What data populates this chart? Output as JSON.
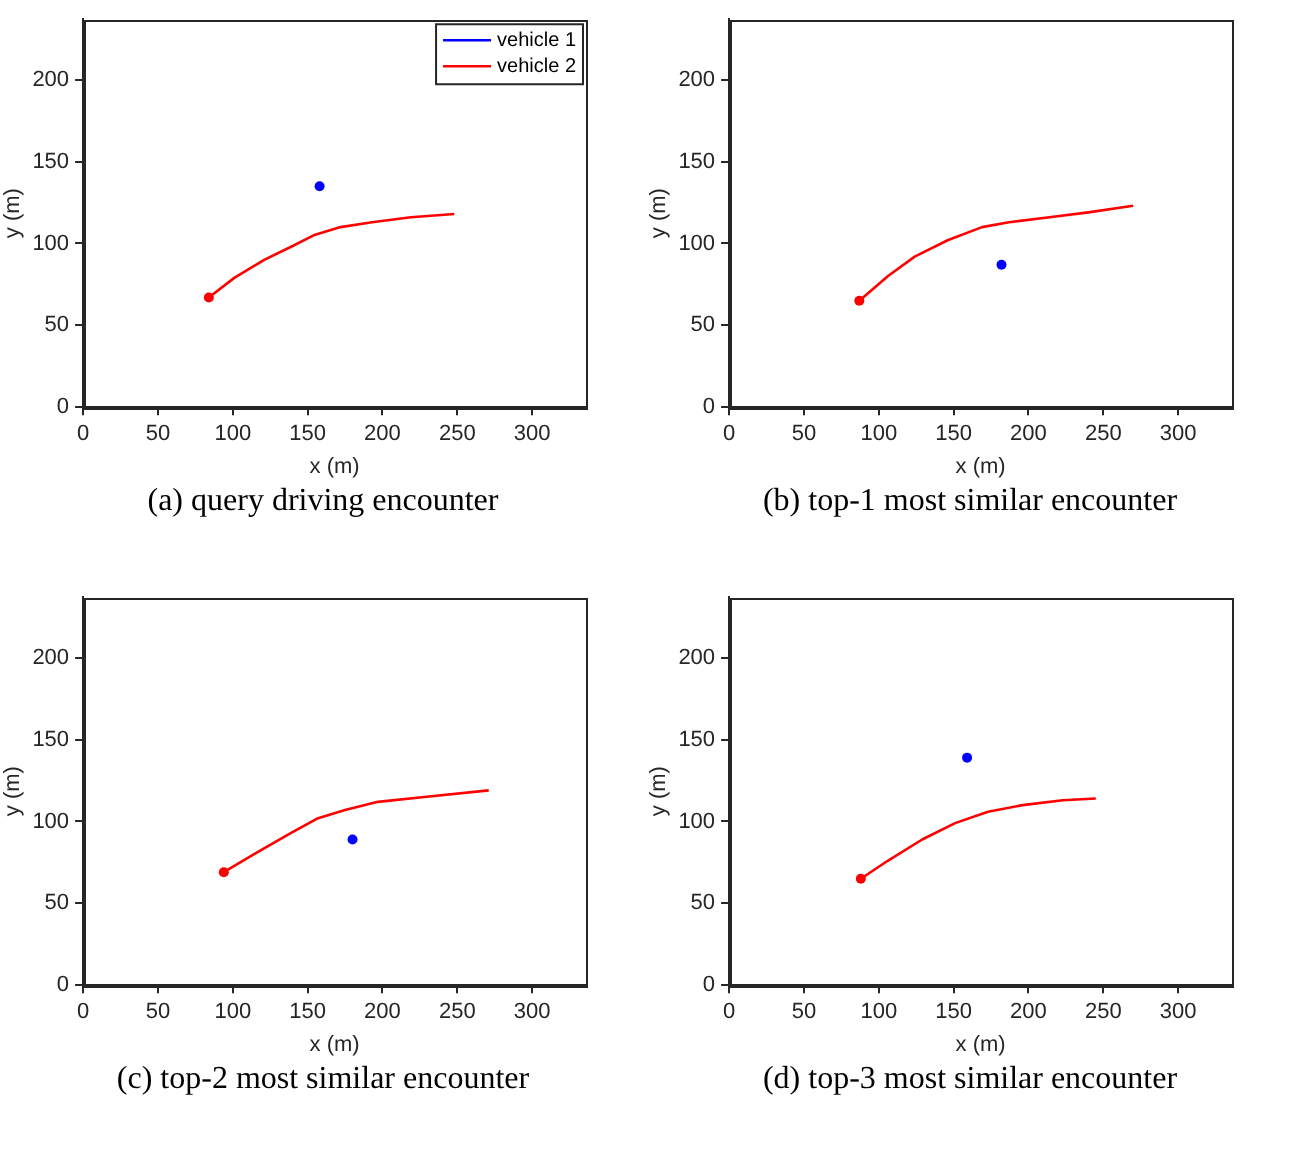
{
  "chart_data": [
    {
      "type": "line",
      "title": "(a) query driving encounter",
      "xlabel": "x (m)",
      "ylabel": "y (m)",
      "xlim": [
        0,
        336
      ],
      "ylim": [
        0,
        237
      ],
      "xticks": [
        0,
        50,
        100,
        150,
        200,
        250,
        300
      ],
      "yticks": [
        0,
        50,
        100,
        150,
        200
      ],
      "grid": false,
      "legend": "top right",
      "marker": "none",
      "line_style": "solid",
      "series": [
        {
          "name": "vehicle 1",
          "color": "#0000ff",
          "type": "scatter",
          "marker": "circle",
          "x": [
            158
          ],
          "values": [
            135
          ]
        },
        {
          "name": "vehicle 2",
          "color": "#ff0000",
          "x": [
            84,
            101,
            121,
            139,
            154,
            172,
            193,
            219,
            248
          ],
          "values": [
            67,
            79,
            90,
            98,
            105,
            110,
            113,
            116,
            118
          ]
        },
        {
          "color": "#ff0000",
          "type": "scatter",
          "marker": "circle",
          "x": [
            84
          ],
          "values": [
            67
          ]
        }
      ]
    },
    {
      "type": "line",
      "title": "(b) top-1 most similar encounter",
      "xlabel": "x (m)",
      "ylabel": "y (m)",
      "xlim": [
        0,
        336
      ],
      "ylim": [
        0,
        237
      ],
      "xticks": [
        0,
        50,
        100,
        150,
        200,
        250,
        300
      ],
      "yticks": [
        0,
        50,
        100,
        150,
        200
      ],
      "grid": false,
      "marker": "none",
      "line_style": "solid",
      "series": [
        {
          "color": "#0000ff",
          "type": "scatter",
          "marker": "circle",
          "x": [
            182
          ],
          "values": [
            87
          ]
        },
        {
          "color": "#ff0000",
          "x": [
            87,
            106,
            124,
            146,
            169,
            187,
            214,
            240,
            270
          ],
          "values": [
            65,
            80,
            92,
            102,
            110,
            113,
            116,
            119,
            123
          ]
        },
        {
          "color": "#ff0000",
          "type": "scatter",
          "marker": "circle",
          "x": [
            87
          ],
          "values": [
            65
          ]
        }
      ]
    },
    {
      "type": "line",
      "title": "(c) top-2 most similar encounter",
      "xlabel": "x (m)",
      "ylabel": "y (m)",
      "xlim": [
        0,
        336
      ],
      "ylim": [
        0,
        237
      ],
      "xticks": [
        0,
        50,
        100,
        150,
        200,
        250,
        300
      ],
      "yticks": [
        0,
        50,
        100,
        150,
        200
      ],
      "grid": false,
      "marker": "none",
      "line_style": "solid",
      "series": [
        {
          "color": "#0000ff",
          "type": "scatter",
          "marker": "circle",
          "x": [
            180
          ],
          "values": [
            89
          ]
        },
        {
          "color": "#ff0000",
          "x": [
            94,
            116,
            139,
            157,
            175,
            197,
            228,
            271
          ],
          "values": [
            69,
            81,
            93,
            102,
            107,
            112,
            115,
            119
          ]
        },
        {
          "color": "#ff0000",
          "type": "scatter",
          "marker": "circle",
          "x": [
            94
          ],
          "values": [
            69
          ]
        }
      ]
    },
    {
      "type": "line",
      "title": "(d) top-3 most similar encounter",
      "xlabel": "x (m)",
      "ylabel": "y (m)",
      "xlim": [
        0,
        336
      ],
      "ylim": [
        0,
        237
      ],
      "xticks": [
        0,
        50,
        100,
        150,
        200,
        250,
        300
      ],
      "yticks": [
        0,
        50,
        100,
        150,
        200
      ],
      "grid": false,
      "marker": "none",
      "line_style": "solid",
      "series": [
        {
          "color": "#0000ff",
          "type": "scatter",
          "marker": "circle",
          "x": [
            159
          ],
          "values": [
            139
          ]
        },
        {
          "color": "#ff0000",
          "x": [
            88,
            106,
            129,
            151,
            173,
            196,
            223,
            245
          ],
          "values": [
            65,
            76,
            89,
            99,
            106,
            110,
            113,
            114
          ]
        },
        {
          "color": "#ff0000",
          "type": "scatter",
          "marker": "circle",
          "x": [
            88
          ],
          "values": [
            65
          ]
        }
      ]
    }
  ]
}
